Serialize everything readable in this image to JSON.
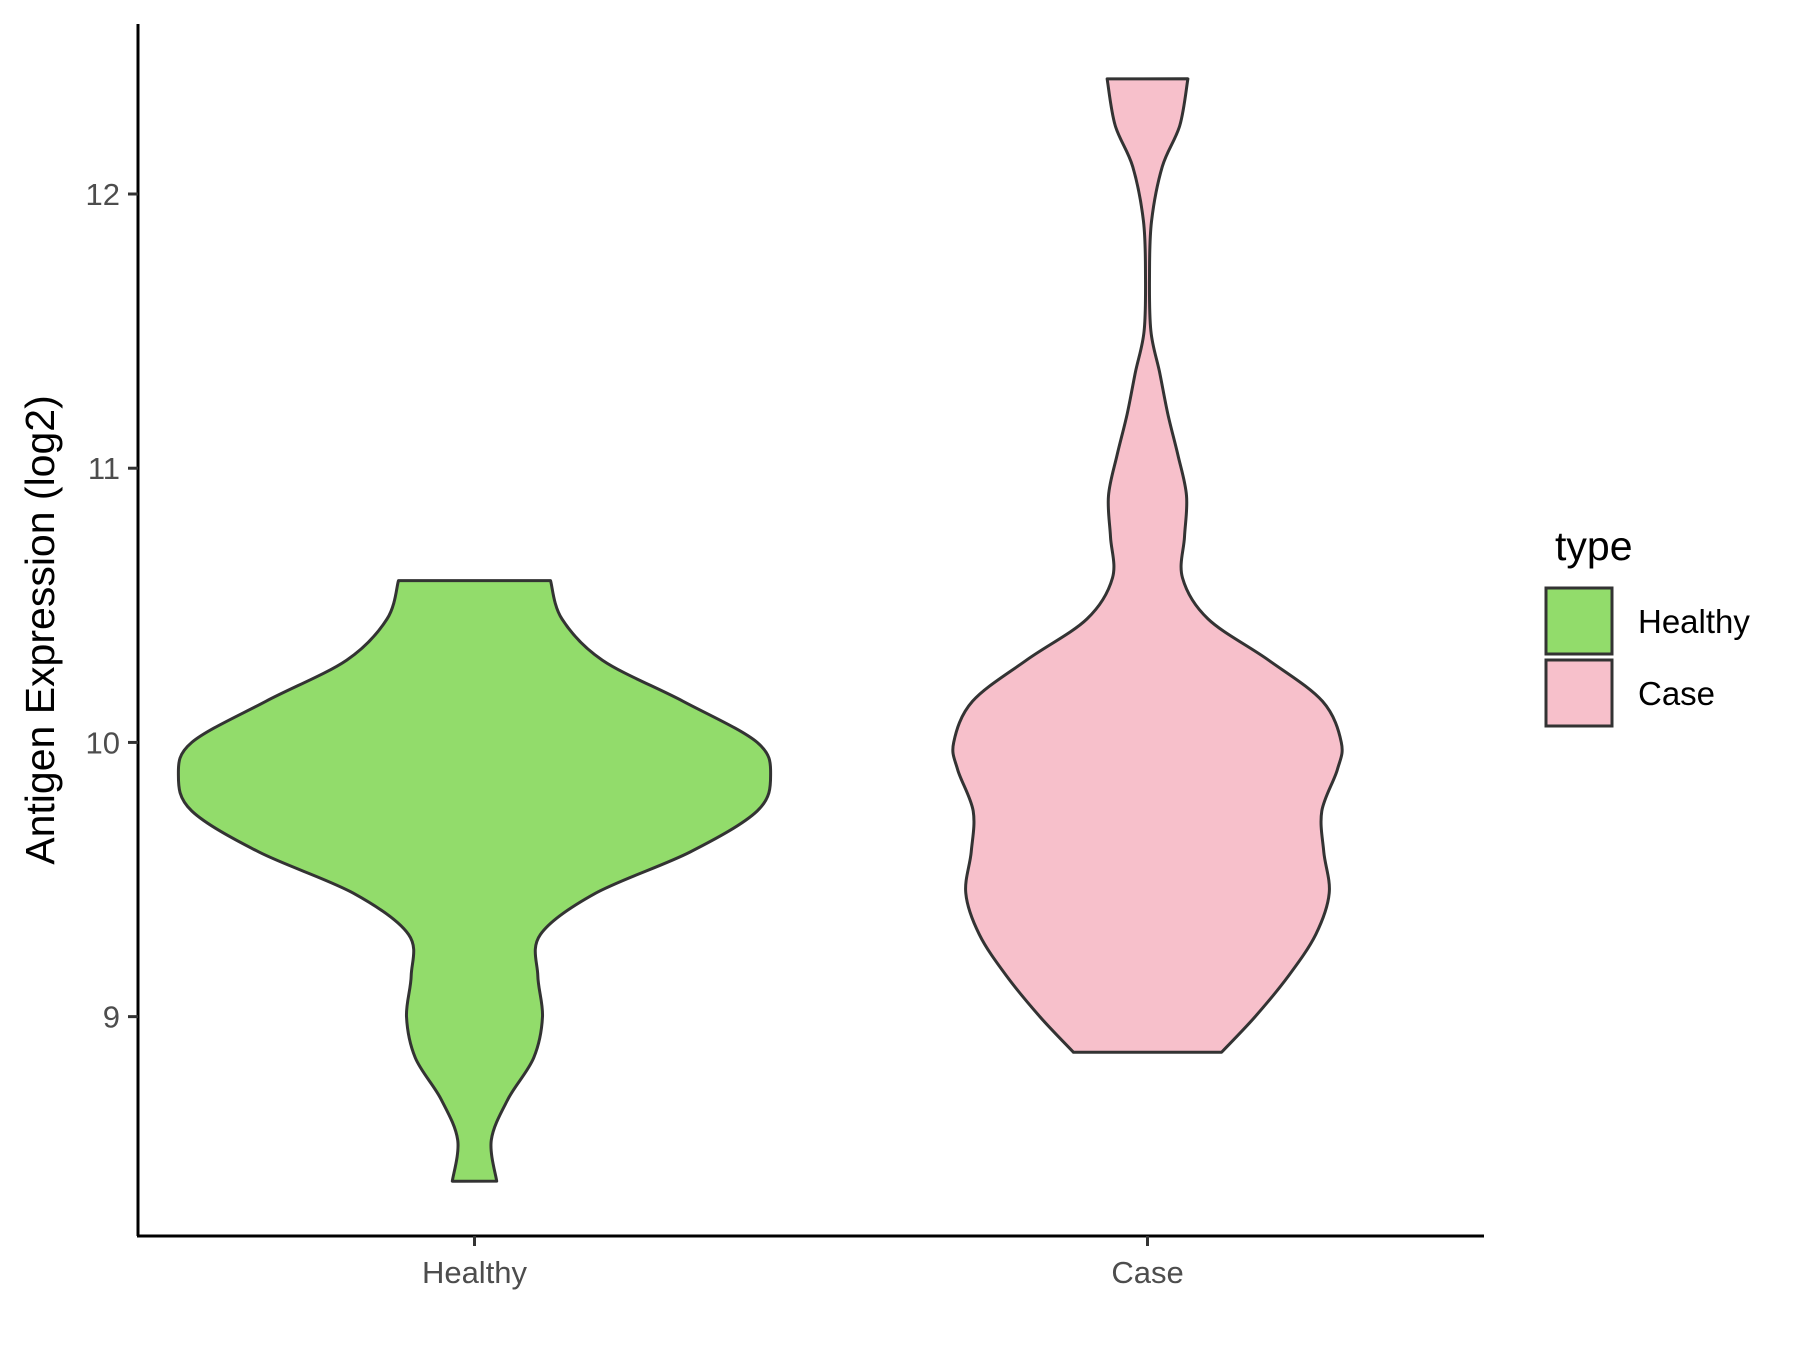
{
  "chart_data": {
    "type": "violin",
    "ylabel": "Antigen Expression (log2)",
    "xlabel": "",
    "categories": [
      "Healthy",
      "Case"
    ],
    "ylim": [
      8.2,
      12.62
    ],
    "yticks": [
      9,
      10,
      11,
      12
    ],
    "grid": false,
    "legend": {
      "title": "type",
      "placement": "right",
      "entries": [
        {
          "label": "Healthy",
          "color": "#92dc6b"
        },
        {
          "label": "Case",
          "color": "#f7c0cb"
        }
      ]
    },
    "series": [
      {
        "category": "Healthy",
        "color": "#92dc6b",
        "min": 8.4,
        "max": 10.59,
        "density_profile": [
          {
            "y": 8.4,
            "half_width": 0.033
          },
          {
            "y": 8.55,
            "half_width": 0.025
          },
          {
            "y": 8.7,
            "half_width": 0.05
          },
          {
            "y": 8.85,
            "half_width": 0.088
          },
          {
            "y": 9.0,
            "half_width": 0.101
          },
          {
            "y": 9.15,
            "half_width": 0.094
          },
          {
            "y": 9.3,
            "half_width": 0.098
          },
          {
            "y": 9.45,
            "half_width": 0.18
          },
          {
            "y": 9.6,
            "half_width": 0.32
          },
          {
            "y": 9.75,
            "half_width": 0.42
          },
          {
            "y": 9.88,
            "half_width": 0.44
          },
          {
            "y": 10.0,
            "half_width": 0.42
          },
          {
            "y": 10.15,
            "half_width": 0.31
          },
          {
            "y": 10.3,
            "half_width": 0.19
          },
          {
            "y": 10.45,
            "half_width": 0.13
          },
          {
            "y": 10.59,
            "half_width": 0.113
          }
        ]
      },
      {
        "category": "Case",
        "color": "#f7c0cb",
        "min": 8.87,
        "max": 12.42,
        "density_profile": [
          {
            "y": 8.87,
            "half_width": 0.11
          },
          {
            "y": 9.0,
            "half_width": 0.16
          },
          {
            "y": 9.15,
            "half_width": 0.21
          },
          {
            "y": 9.3,
            "half_width": 0.25
          },
          {
            "y": 9.45,
            "half_width": 0.27
          },
          {
            "y": 9.6,
            "half_width": 0.262
          },
          {
            "y": 9.75,
            "half_width": 0.259
          },
          {
            "y": 9.9,
            "half_width": 0.282
          },
          {
            "y": 10.0,
            "half_width": 0.288
          },
          {
            "y": 10.15,
            "half_width": 0.26
          },
          {
            "y": 10.3,
            "half_width": 0.18
          },
          {
            "y": 10.45,
            "half_width": 0.09
          },
          {
            "y": 10.6,
            "half_width": 0.052
          },
          {
            "y": 10.75,
            "half_width": 0.055
          },
          {
            "y": 10.9,
            "half_width": 0.058
          },
          {
            "y": 11.05,
            "half_width": 0.045
          },
          {
            "y": 11.2,
            "half_width": 0.03
          },
          {
            "y": 11.35,
            "half_width": 0.018
          },
          {
            "y": 11.5,
            "half_width": 0.005
          },
          {
            "y": 11.7,
            "half_width": 0.003
          },
          {
            "y": 11.9,
            "half_width": 0.006
          },
          {
            "y": 12.1,
            "half_width": 0.022
          },
          {
            "y": 12.25,
            "half_width": 0.048
          },
          {
            "y": 12.42,
            "half_width": 0.06
          }
        ]
      }
    ]
  }
}
